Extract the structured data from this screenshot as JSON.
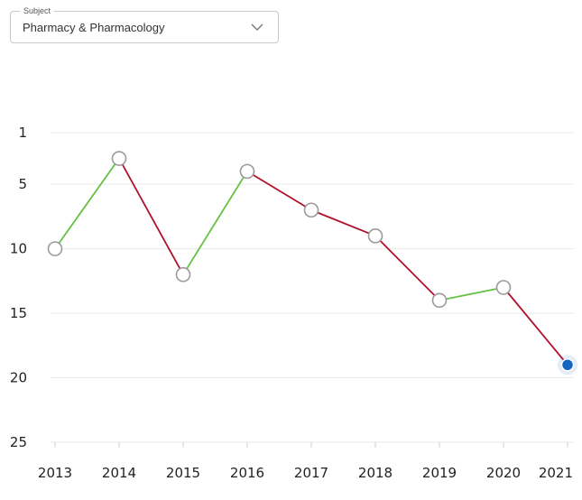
{
  "subject": {
    "label": "Subject",
    "value": "Pharmacy & Pharmacology",
    "icon": "chevron-down-icon"
  },
  "colors": {
    "up": "#64c144",
    "down": "#b0122c",
    "grid": "#e8e8e8",
    "point_stroke": "#9a9a9a",
    "current_point": "#1565c0"
  },
  "chart_data": {
    "type": "line",
    "x": [
      "2013",
      "2014",
      "2015",
      "2016",
      "2017",
      "2018",
      "2019",
      "2020",
      "2021"
    ],
    "series": [
      {
        "values": [
          10,
          3,
          12,
          4,
          7,
          9,
          14,
          13,
          19
        ]
      }
    ],
    "y_ticks": [
      1,
      5,
      10,
      15,
      20,
      25
    ],
    "ylim": [
      1,
      25
    ],
    "y_inverted": true,
    "grid": true
  }
}
